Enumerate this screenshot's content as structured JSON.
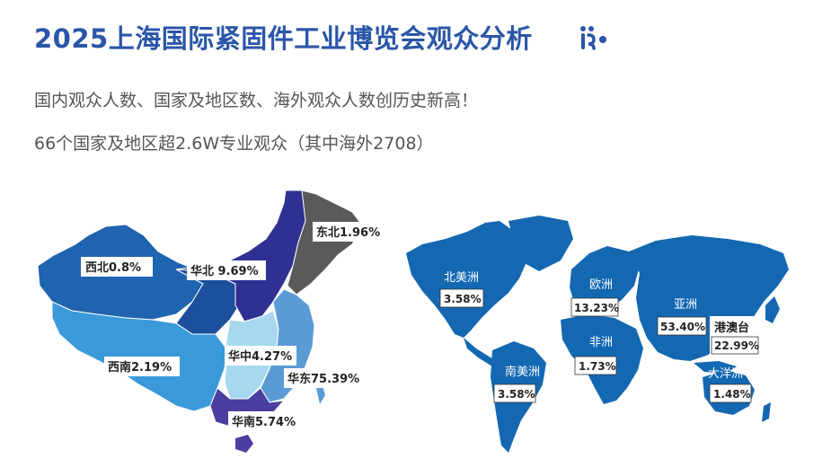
{
  "title": "2025上海国际紧固件工业博览会观众分析",
  "subtitle1": "国内观众人数、国家及地区数、海外观众人数创历史新高！",
  "subtitle2": "66个国家及地区超2.6W专业观众（其中海外2708）",
  "icons": {
    "logo": "fastener-logo-icon"
  },
  "colors": {
    "title": "#2b56a8",
    "northeast": "#5a5a5a",
    "north": "#2e3192",
    "northwest": "#1f64b0",
    "southwest": "#3a9ad9",
    "central": "#a8d8f0",
    "east": "#5b9bd5",
    "south": "#4a3fa0",
    "world": "#1468b2"
  },
  "china_regions": [
    {
      "id": "northwest",
      "label": "西北0.8%"
    },
    {
      "id": "north",
      "label": "华北 9.69%"
    },
    {
      "id": "northeast",
      "label": "东北1.96%"
    },
    {
      "id": "southwest",
      "label": "西南2.19%"
    },
    {
      "id": "central",
      "label": "华中4.27%"
    },
    {
      "id": "east",
      "label": "华东75.39%"
    },
    {
      "id": "south",
      "label": "华南5.74%"
    }
  ],
  "world_regions": [
    {
      "id": "north-america",
      "name": "北美洲",
      "value": "3.58%"
    },
    {
      "id": "south-america",
      "name": "南美洲",
      "value": "3.58%"
    },
    {
      "id": "europe",
      "name": "欧洲",
      "value": "13.23%"
    },
    {
      "id": "africa",
      "name": "非洲",
      "value": "1.73%"
    },
    {
      "id": "asia",
      "name": "亚洲",
      "value": "53.40%"
    },
    {
      "id": "hk-macau-taiwan",
      "name": "港澳台",
      "value": "22.99%"
    },
    {
      "id": "oceania",
      "name": "大洋洲",
      "value": "1.48%"
    }
  ]
}
